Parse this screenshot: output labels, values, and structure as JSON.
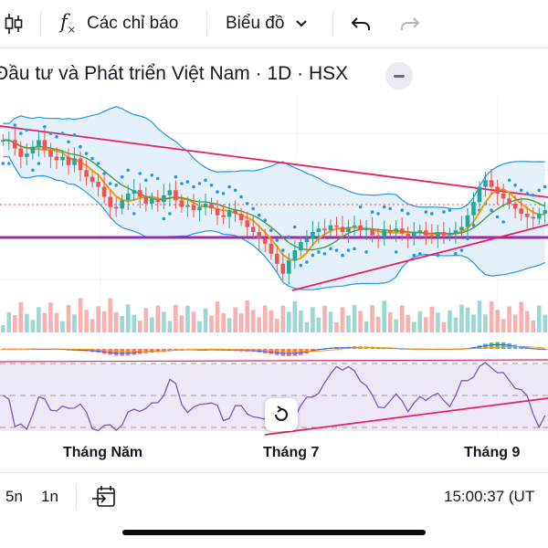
{
  "toolbar": {
    "indicators_label": "Các chỉ báo",
    "chart_type_label": "Biểu đồ"
  },
  "header": {
    "title": "Đầu tư và Phát triển Việt Nam · 1D · HSX"
  },
  "x_axis": {
    "labels": [
      "Tháng Năm",
      "Tháng 7",
      "Tháng 9"
    ]
  },
  "bottom_bar": {
    "range_5d": "5n",
    "range_1d": "1n",
    "time": "15:00:37 (UT"
  },
  "colors": {
    "up": "#26a69a",
    "down": "#ef5350",
    "trendline": "#e91e63",
    "support": "#9c27b0",
    "bollinger": "#2196f3",
    "bollinger_fill": "#dcecf8",
    "rsi_fill": "#ede7f6",
    "rsi_line": "#7e57c2"
  },
  "chart_data": {
    "type": "candlestick",
    "series": [
      {
        "name": "price",
        "values": [
          38,
          38,
          37.5,
          37,
          37.2,
          37.6,
          38,
          37.4,
          37,
          36.8,
          37,
          36.5,
          36.9,
          36.2,
          35.8,
          35.5,
          35.2,
          34.6,
          34,
          33.9,
          34.4,
          34.8,
          35,
          34.6,
          34.2,
          34.5,
          34.3,
          34.7,
          35,
          34.4,
          34,
          34.1,
          33.8,
          34,
          34.2,
          33.9,
          33.5,
          33.4,
          33.8,
          33.6,
          33.2,
          32.8,
          32.5,
          32.1,
          31.8,
          31.2,
          30.6,
          30,
          30.8,
          31.4,
          31.9,
          32.1,
          32.5,
          32.7,
          32.6,
          32.9,
          32.8,
          32.5,
          32.8,
          32.9,
          32.6,
          32.7,
          32.3,
          32.2,
          32.6,
          32.5,
          32.7,
          32.4,
          32.2,
          32.5,
          32.6,
          32.3,
          32.2,
          32.5,
          32.3,
          32.4,
          32.6,
          32.8,
          33.5,
          34.3,
          35.2,
          35.6,
          35.2,
          34.8,
          34.5,
          34.2,
          33.9,
          33.6,
          33.4,
          33.3,
          33.6,
          33.8
        ]
      }
    ]
  }
}
